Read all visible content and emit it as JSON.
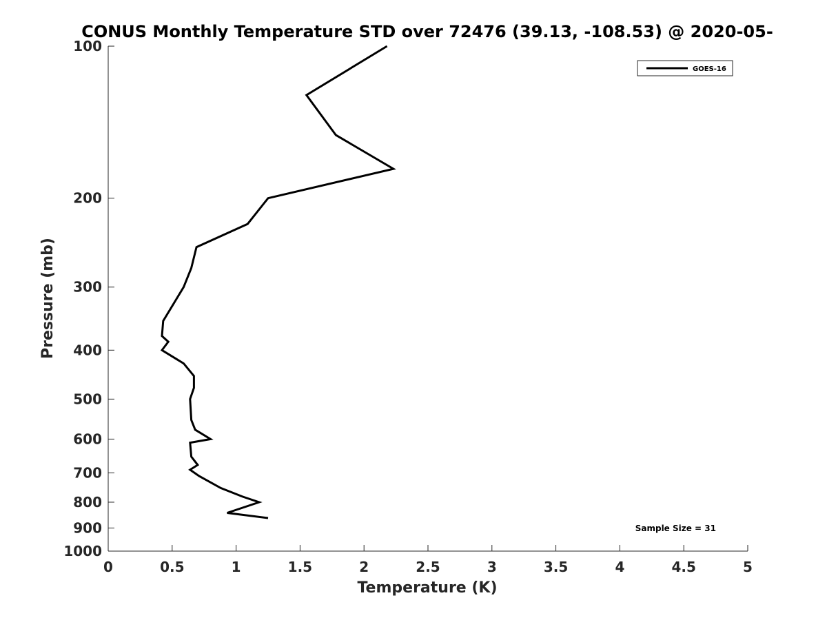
{
  "chart_data": {
    "type": "line",
    "title": "CONUS Monthly Temperature STD over 72476 (39.13, -108.53) @ 2020-05-",
    "xlabel": "Temperature (K)",
    "ylabel": "Pressure (mb)",
    "xlim": [
      0,
      5
    ],
    "ylim": [
      100,
      1000
    ],
    "y_scale": "log",
    "y_reversed": true,
    "x_ticks": [
      0,
      0.5,
      1,
      1.5,
      2,
      2.5,
      3,
      3.5,
      4,
      4.5,
      5
    ],
    "x_tick_labels": [
      "0",
      "0.5",
      "1",
      "1.5",
      "2",
      "2.5",
      "3",
      "3.5",
      "4",
      "4.5",
      "5"
    ],
    "y_ticks": [
      100,
      200,
      300,
      400,
      500,
      600,
      700,
      800,
      900,
      1000
    ],
    "y_tick_labels": [
      "100",
      "200",
      "300",
      "400",
      "500",
      "600",
      "700",
      "800",
      "900",
      "1000"
    ],
    "grid": false,
    "legend": {
      "placement": "top-right",
      "entries": [
        "GOES-16"
      ]
    },
    "annotation": "Sample Size = 31",
    "series": [
      {
        "name": "GOES-16",
        "color": "#000000",
        "points": [
          [
            2.18,
            100
          ],
          [
            1.55,
            125
          ],
          [
            1.78,
            150
          ],
          [
            2.23,
            175
          ],
          [
            1.25,
            200
          ],
          [
            1.09,
            225
          ],
          [
            0.69,
            250
          ],
          [
            0.65,
            275
          ],
          [
            0.59,
            300
          ],
          [
            0.43,
            350
          ],
          [
            0.42,
            375
          ],
          [
            0.47,
            385
          ],
          [
            0.42,
            400
          ],
          [
            0.59,
            425
          ],
          [
            0.67,
            450
          ],
          [
            0.67,
            475
          ],
          [
            0.64,
            500
          ],
          [
            0.65,
            550
          ],
          [
            0.68,
            575
          ],
          [
            0.8,
            600
          ],
          [
            0.64,
            610
          ],
          [
            0.65,
            650
          ],
          [
            0.7,
            675
          ],
          [
            0.64,
            690
          ],
          [
            0.71,
            710
          ],
          [
            0.88,
            750
          ],
          [
            1.05,
            780
          ],
          [
            1.18,
            800
          ],
          [
            0.93,
            840
          ],
          [
            1.25,
            860
          ]
        ]
      }
    ]
  }
}
